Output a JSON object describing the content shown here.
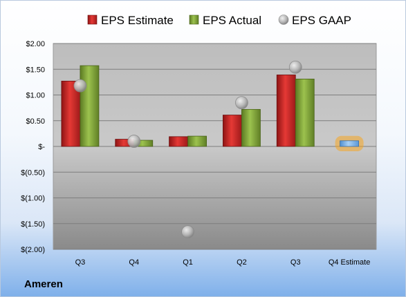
{
  "company": "Ameren",
  "chart_data": {
    "type": "bar",
    "categories": [
      "Q3",
      "Q4",
      "Q1",
      "Q2",
      "Q3",
      "Q4 Estimate"
    ],
    "series": [
      {
        "name": "EPS Estimate",
        "values": [
          1.27,
          0.14,
          0.19,
          0.61,
          1.39,
          0.11
        ],
        "color": "#c62828"
      },
      {
        "name": "EPS Actual",
        "values": [
          1.57,
          0.12,
          0.2,
          0.72,
          1.31,
          null
        ],
        "color": "#7fa33a"
      },
      {
        "name": "EPS GAAP",
        "type": "scatter",
        "values": [
          1.18,
          0.1,
          -1.66,
          0.85,
          1.54,
          null
        ],
        "color": "#a8a8a8"
      }
    ],
    "highlight": {
      "category_index": 5,
      "color": "#7fb6ea",
      "glow": "#f5a623"
    },
    "ylim": [
      -2.0,
      2.0
    ],
    "yticks": [
      2.0,
      1.5,
      1.0,
      0.5,
      0,
      -0.5,
      -1.0,
      -1.5,
      -2.0
    ],
    "ytick_labels": [
      "$2.00",
      "$1.50",
      "$1.00",
      "$0.50",
      "$-",
      "$(0.50)",
      "$(1.00)",
      "$(1.50)",
      "$(2.00)"
    ],
    "grid": true,
    "legend_position": "top"
  }
}
